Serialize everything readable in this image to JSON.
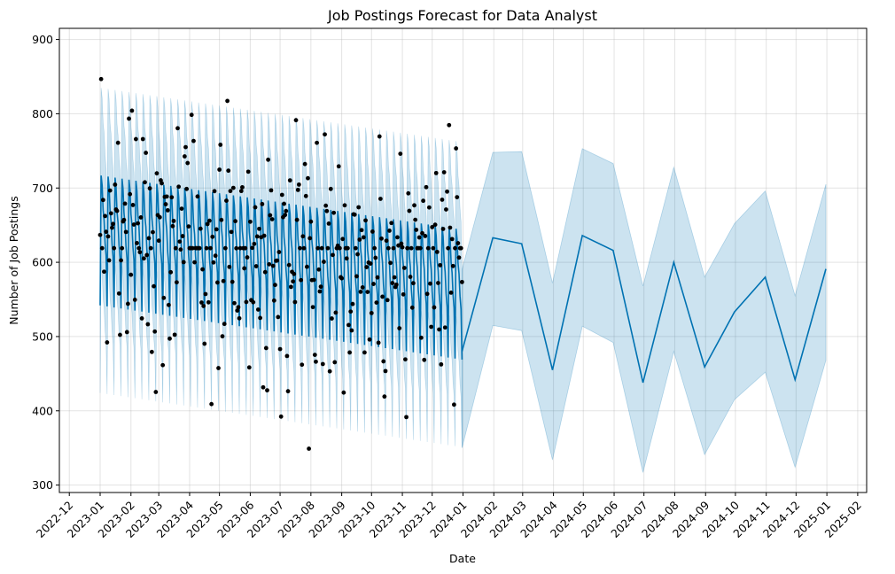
{
  "chart_data": {
    "type": "line",
    "title": "Job Postings Forecast for Data Analyst",
    "xlabel": "Date",
    "ylabel": "Number of Job Postings",
    "xlim": [
      "2022-11-21",
      "2025-02-10"
    ],
    "ylim": [
      290,
      915
    ],
    "grid": true,
    "x_ticks": [
      "2022-12-01",
      "2023-01-01",
      "2023-02-01",
      "2023-03-01",
      "2023-04-01",
      "2023-05-01",
      "2023-06-01",
      "2023-07-01",
      "2023-08-01",
      "2023-09-01",
      "2023-10-01",
      "2023-11-01",
      "2023-12-01",
      "2024-01-01",
      "2024-02-01",
      "2024-03-01",
      "2024-04-01",
      "2024-05-01",
      "2024-06-01",
      "2024-07-01",
      "2024-08-01",
      "2024-09-01",
      "2024-10-01",
      "2024-11-01",
      "2024-12-01",
      "2025-01-01",
      "2025-02-01"
    ],
    "x_tick_labels": [
      "2022-12",
      "2023-01",
      "2023-02",
      "2023-03",
      "2023-04",
      "2023-05",
      "2023-06",
      "2023-07",
      "2023-08",
      "2023-09",
      "2023-10",
      "2023-11",
      "2023-12",
      "2024-01",
      "2024-02",
      "2024-03",
      "2024-04",
      "2024-05",
      "2024-06",
      "2024-07",
      "2024-08",
      "2024-09",
      "2024-10",
      "2024-11",
      "2024-12",
      "2025-01",
      "2025-02"
    ],
    "y_ticks": [
      300,
      400,
      500,
      600,
      700,
      800,
      900
    ],
    "colors": {
      "forecast_line": "#0072B2",
      "interval_fill": "#0072B2",
      "interval_opacity": 0.2,
      "observed_points": "#000000"
    },
    "series": [
      {
        "kind": "forecast_monthly",
        "x": [
          "2023-12-31",
          "2024-01-31",
          "2024-02-29",
          "2024-03-31",
          "2024-04-30",
          "2024-05-31",
          "2024-06-30",
          "2024-07-31",
          "2024-08-31",
          "2024-09-30",
          "2024-10-31",
          "2024-11-30",
          "2024-12-31"
        ],
        "yhat": [
          480,
          633,
          625,
          455,
          636,
          616,
          438,
          600,
          459,
          533,
          580,
          442,
          591
        ],
        "yhat_lower": [
          350,
          515,
          508,
          334,
          514,
          492,
          317,
          480,
          341,
          415,
          452,
          324,
          468
        ],
        "yhat_upper": [
          590,
          748,
          749,
          572,
          753,
          733,
          568,
          728,
          580,
          652,
          696,
          555,
          705
        ]
      },
      {
        "kind": "forecast_daily_2023",
        "start": "2023-01-01",
        "end": "2023-12-31",
        "trend_start": 624,
        "trend_end": 551,
        "weekly_pattern": [
          -82,
          93,
          80,
          47,
          33,
          3,
          -14
        ],
        "interval_halfwidth": 118
      },
      {
        "kind": "observed_points",
        "count": 365,
        "start": "2023-01-01",
        "end": "2023-12-31",
        "y_range": [
          349,
          886
        ],
        "spread_sd": 95
      }
    ]
  }
}
